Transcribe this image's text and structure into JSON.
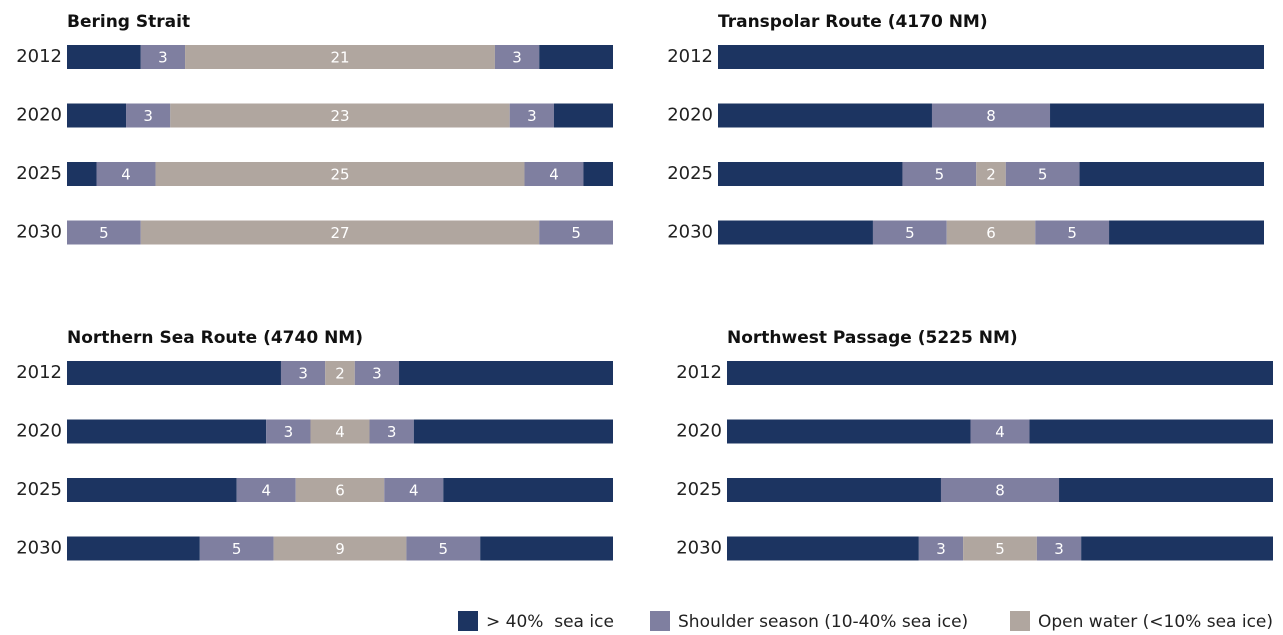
{
  "chart_data": [
    {
      "type": "bar",
      "orientation": "horizontal",
      "stacked": true,
      "title": "Bering Strait",
      "categories": [
        "2012",
        "2020",
        "2025",
        "2030"
      ],
      "xlim": [
        0,
        37
      ],
      "series": [
        {
          "color": "#1c3461",
          "values": [
            5,
            4,
            2,
            0
          ],
          "show_labels": false
        },
        {
          "color": "#7f7fa0",
          "values": [
            3,
            3,
            4,
            5
          ],
          "show_labels": true
        },
        {
          "color": "#b0a69f",
          "values": [
            21,
            23,
            25,
            27
          ],
          "show_labels": true
        },
        {
          "color": "#7f7fa0",
          "values": [
            3,
            3,
            4,
            5
          ],
          "show_labels": true
        },
        {
          "color": "#1c3461",
          "values": [
            5,
            4,
            2,
            0
          ],
          "show_labels": false
        }
      ]
    },
    {
      "type": "bar",
      "orientation": "horizontal",
      "stacked": true,
      "title": "Transpolar Route (4170 NM)",
      "categories": [
        "2012",
        "2020",
        "2025",
        "2030"
      ],
      "xlim": [
        0,
        37
      ],
      "series": [
        {
          "color": "#1c3461",
          "values": [
            37,
            14.5,
            12.5,
            10.5
          ],
          "show_labels": false
        },
        {
          "color": "#7f7fa0",
          "values": [
            0,
            8,
            5,
            5
          ],
          "show_labels": true
        },
        {
          "color": "#b0a69f",
          "values": [
            0,
            0,
            2,
            6
          ],
          "show_labels": true
        },
        {
          "color": "#7f7fa0",
          "values": [
            0,
            0,
            5,
            5
          ],
          "show_labels": true
        },
        {
          "color": "#1c3461",
          "values": [
            0,
            14.5,
            12.5,
            10.5
          ],
          "show_labels": false
        }
      ]
    },
    {
      "type": "bar",
      "orientation": "horizontal",
      "stacked": true,
      "title": "Northern Sea Route (4740 NM)",
      "categories": [
        "2012",
        "2020",
        "2025",
        "2030"
      ],
      "xlim": [
        0,
        37
      ],
      "series": [
        {
          "color": "#1c3461",
          "values": [
            14.5,
            13.5,
            11.5,
            9
          ],
          "show_labels": false
        },
        {
          "color": "#7f7fa0",
          "values": [
            3,
            3,
            4,
            5
          ],
          "show_labels": true
        },
        {
          "color": "#b0a69f",
          "values": [
            2,
            4,
            6,
            9
          ],
          "show_labels": true
        },
        {
          "color": "#7f7fa0",
          "values": [
            3,
            3,
            4,
            5
          ],
          "show_labels": true
        },
        {
          "color": "#1c3461",
          "values": [
            14.5,
            13.5,
            11.5,
            9
          ],
          "show_labels": false
        }
      ]
    },
    {
      "type": "bar",
      "orientation": "horizontal",
      "stacked": true,
      "title": "Northwest Passage (5225 NM)",
      "categories": [
        "2012",
        "2020",
        "2025",
        "2030"
      ],
      "xlim": [
        0,
        37
      ],
      "series": [
        {
          "color": "#1c3461",
          "values": [
            37,
            16.5,
            14.5,
            13
          ],
          "show_labels": false
        },
        {
          "color": "#7f7fa0",
          "values": [
            0,
            4,
            8,
            3
          ],
          "show_labels": true
        },
        {
          "color": "#b0a69f",
          "values": [
            0,
            0,
            0,
            5
          ],
          "show_labels": true
        },
        {
          "color": "#7f7fa0",
          "values": [
            0,
            0,
            0,
            3
          ],
          "show_labels": true
        },
        {
          "color": "#1c3461",
          "values": [
            0,
            16.5,
            14.5,
            13
          ],
          "show_labels": false
        }
      ]
    }
  ],
  "legend": [
    {
      "name": "> 40%  sea ice",
      "color": "#1c3461"
    },
    {
      "name": "Shoulder season (10-40% sea ice)",
      "color": "#7f7fa0"
    },
    {
      "name": "Open water (<10% sea ice)",
      "color": "#b0a69f"
    }
  ]
}
